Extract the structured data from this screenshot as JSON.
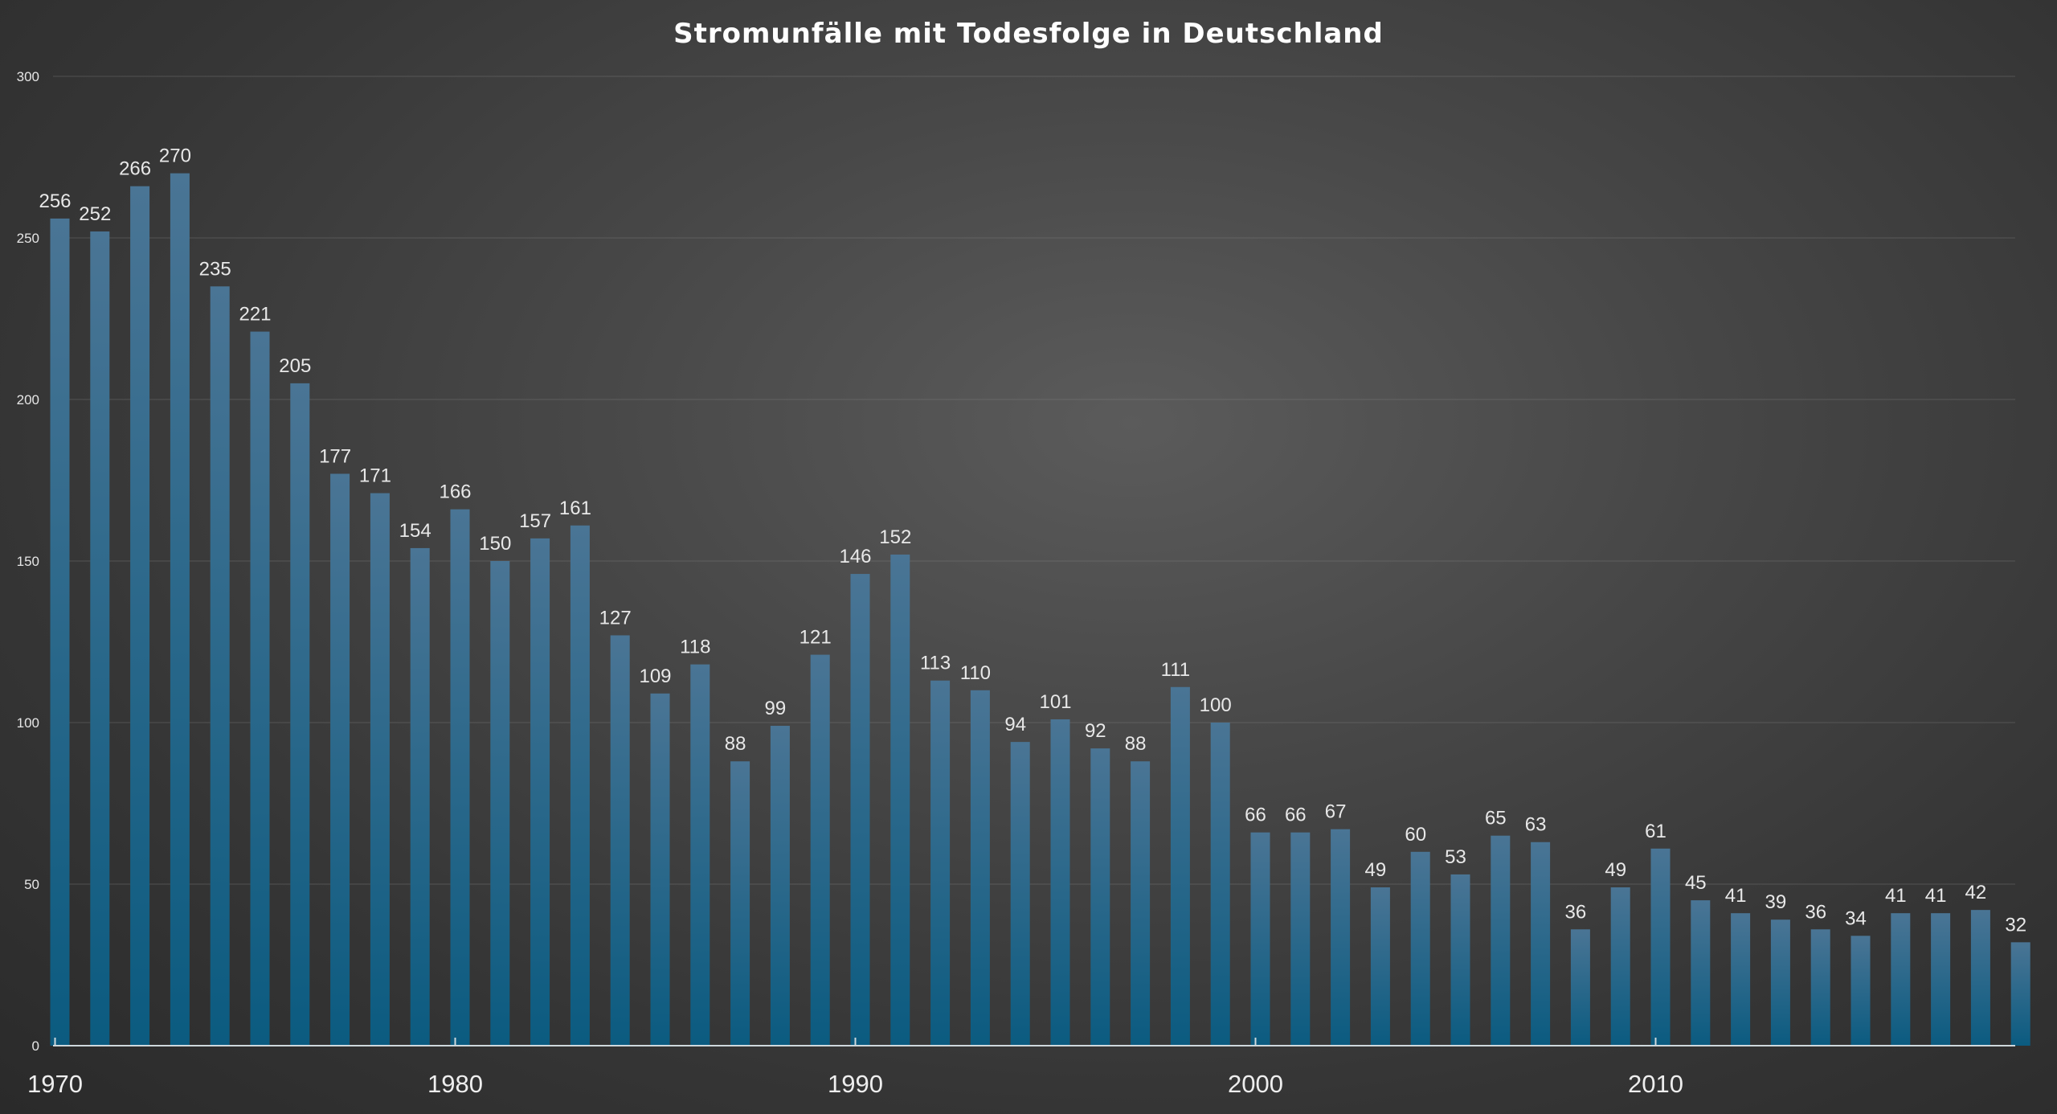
{
  "chart_data": {
    "type": "bar",
    "title": "Stromunfälle mit Todesfolge in Deutschland",
    "xlabel": "",
    "ylabel": "",
    "ylim": [
      0,
      300
    ],
    "yticks": [
      0,
      50,
      100,
      150,
      200,
      250,
      300
    ],
    "xticks": [
      1970,
      1980,
      1990,
      2000,
      2010
    ],
    "grid": true,
    "legend": "none",
    "bar_color_top": "#4a7595",
    "bar_color_bottom": "#0b5b80",
    "categories": [
      1970,
      1971,
      1972,
      1973,
      1974,
      1975,
      1976,
      1977,
      1978,
      1979,
      1980,
      1981,
      1982,
      1983,
      1984,
      1985,
      1986,
      1987,
      1988,
      1989,
      1990,
      1991,
      1992,
      1993,
      1994,
      1995,
      1996,
      1997,
      1998,
      1999,
      2000,
      2001,
      2002,
      2003,
      2004,
      2005,
      2006,
      2007,
      2008,
      2009,
      2010,
      2011,
      2012,
      2013,
      2014,
      2015,
      2016,
      2017,
      2018,
      2019
    ],
    "values": [
      256,
      252,
      266,
      270,
      235,
      221,
      205,
      177,
      171,
      154,
      166,
      150,
      157,
      161,
      127,
      109,
      118,
      88,
      99,
      121,
      146,
      152,
      113,
      110,
      94,
      101,
      92,
      88,
      111,
      100,
      66,
      66,
      67,
      49,
      60,
      53,
      65,
      63,
      36,
      49,
      61,
      45,
      41,
      39,
      36,
      34,
      41,
      41,
      42,
      32
    ]
  }
}
